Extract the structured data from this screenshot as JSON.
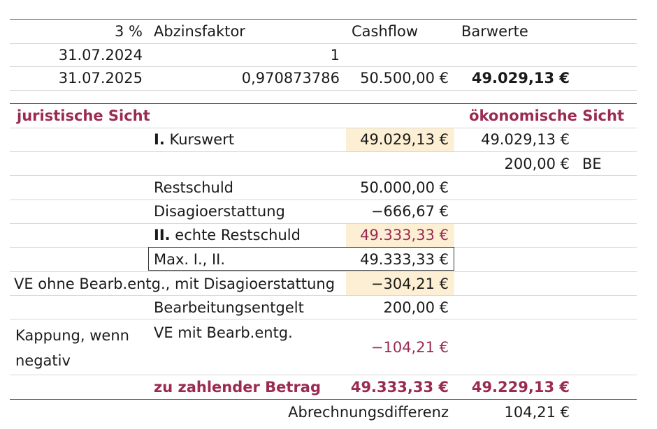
{
  "header": {
    "rate": "3 %",
    "factor_label": "Abzinsfaktor",
    "cashflow_label": "Cashflow",
    "barwerte_label": "Barwerte"
  },
  "rows": [
    {
      "date": "31.07.2024",
      "factor": "1",
      "cashflow": "",
      "barwert": ""
    },
    {
      "date": "31.07.2025",
      "factor": "0,970873786",
      "cashflow": "50.500,00 €",
      "barwert": "49.029,13 €"
    }
  ],
  "sections": {
    "left_title": "juristische Sicht",
    "right_title": "ökonomische Sicht"
  },
  "kurswert": {
    "roman": "I.",
    "label": "Kurswert",
    "value": "49.029,13 €",
    "eco_value": "49.029,13 €"
  },
  "be_row": {
    "value": "200,00 €",
    "tag": "BE"
  },
  "restschuld": {
    "label": "Restschuld",
    "value": "50.000,00 €"
  },
  "disagio": {
    "label": "Disagioerstattung",
    "value": "−666,67 €"
  },
  "echte_restschuld": {
    "roman": "II.",
    "label": "echte Restschuld",
    "value": "49.333,33 €"
  },
  "max_row": {
    "label": "Max. I., II.",
    "value": "49.333,33 €"
  },
  "ve_ohne": {
    "label": "VE ohne Bearb.entg., mit Disagioerstattung",
    "value": "−304,21 €"
  },
  "bearbeitung": {
    "label": "Bearbeitungsentgelt",
    "value": "200,00 €"
  },
  "kappung": {
    "line1": "Kappung, wenn",
    "line2": "negativ"
  },
  "ve_mit": {
    "label": "VE mit Bearb.entg.",
    "value": "−104,21 €"
  },
  "zu_zahlen": {
    "label": "zu zahlender Betrag",
    "value": "49.333,33 €",
    "eco_value": "49.229,13 €"
  },
  "differenz": {
    "label": "Abrechnungsdifferenz",
    "value": "104,21 €"
  },
  "colors": {
    "accent": "#9b2a52",
    "highlight": "#fdefd3"
  }
}
